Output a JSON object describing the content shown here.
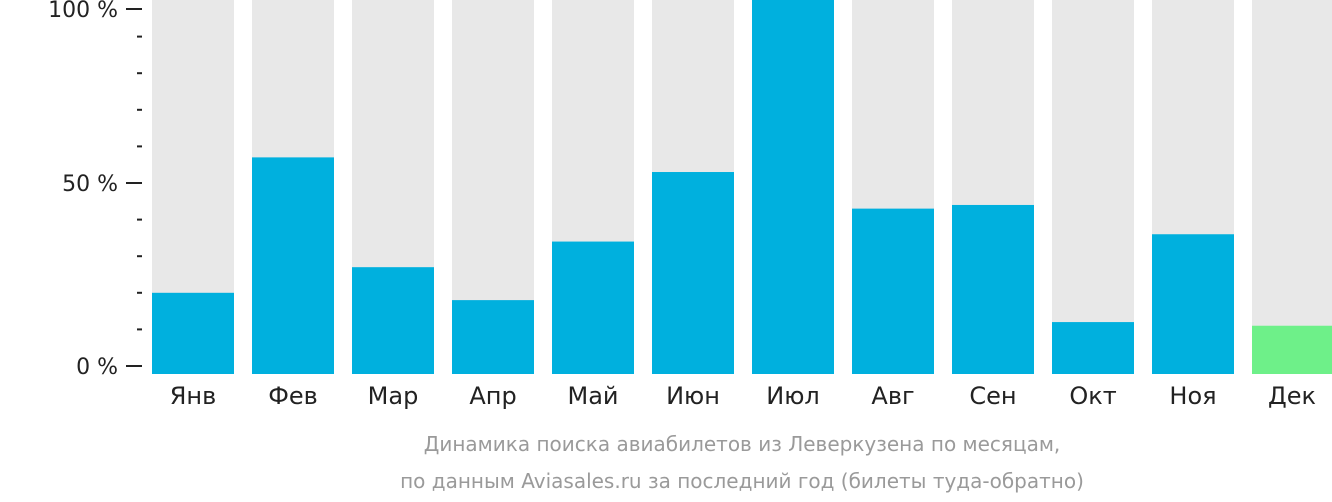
{
  "chart_data": {
    "type": "bar",
    "categories": [
      "Янв",
      "Фев",
      "Мар",
      "Апр",
      "Май",
      "Июн",
      "Июл",
      "Авг",
      "Сен",
      "Окт",
      "Ноя",
      "Дек"
    ],
    "values": [
      20,
      57,
      27,
      18,
      34,
      53,
      100,
      43,
      44,
      12,
      36,
      11
    ],
    "highlighted_category": "Дек",
    "ylim": [
      0,
      100
    ],
    "y_ticks": [
      {
        "value": 100,
        "label": "100 %"
      },
      {
        "value": 50,
        "label": "50 %"
      },
      {
        "value": 0,
        "label": "0 %"
      }
    ],
    "y_minor_ticks": [
      10,
      20,
      30,
      40,
      60,
      70,
      80,
      90
    ],
    "grid": false,
    "legend": "none",
    "colors": {
      "bar": "#00b0de",
      "highlight_bar": "#6ef089",
      "track": "#e8e8e8"
    },
    "caption_lines": [
      "Динамика поиска авиабилетов из Леверкузена по месяцам,",
      "по данным Aviasales.ru за последний год (билеты туда-обратно)"
    ]
  }
}
